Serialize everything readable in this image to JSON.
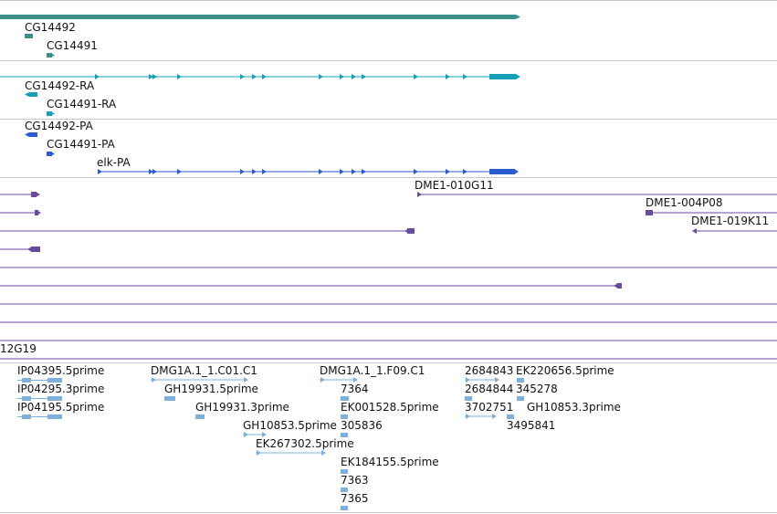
{
  "colors": {
    "gene": "#3a8f8b",
    "mrna": "#14a0b8",
    "cds": "#2a5bd1",
    "clone": "#6a4a9c",
    "est": "#7db1dc",
    "separator": "#c8c8c8"
  },
  "gene_track": {
    "labels": [
      "CG14492",
      "CG14491"
    ]
  },
  "mrna_track": {
    "labels": [
      "CG14492-RA",
      "CG14491-RA"
    ]
  },
  "cds_track": {
    "labels": [
      "CG14492-PA",
      "CG14491-PA",
      "elk-PA"
    ]
  },
  "clone_track": {
    "labels": [
      "DME1-010G11",
      "DME1-004P08",
      "DME1-019K11",
      "12G19"
    ]
  },
  "est_track": {
    "labels": [
      "IP04395.5prime",
      "IP04295.3prime",
      "IP04195.5prime",
      "DMG1A.1_1.C01.C1",
      "GH19931.5prime",
      "GH19931.3prime",
      "GH10853.5prime",
      "EK267302.5prime",
      "DMG1A.1_1.F09.C1",
      "7364",
      "EK001528.5prime",
      "305836",
      "EK184155.5prime",
      "7363",
      "7365",
      "2684843",
      "EK220656.5prime",
      "2684844",
      "345278",
      "3702751",
      "GH10853.3prime",
      "3495841"
    ]
  }
}
